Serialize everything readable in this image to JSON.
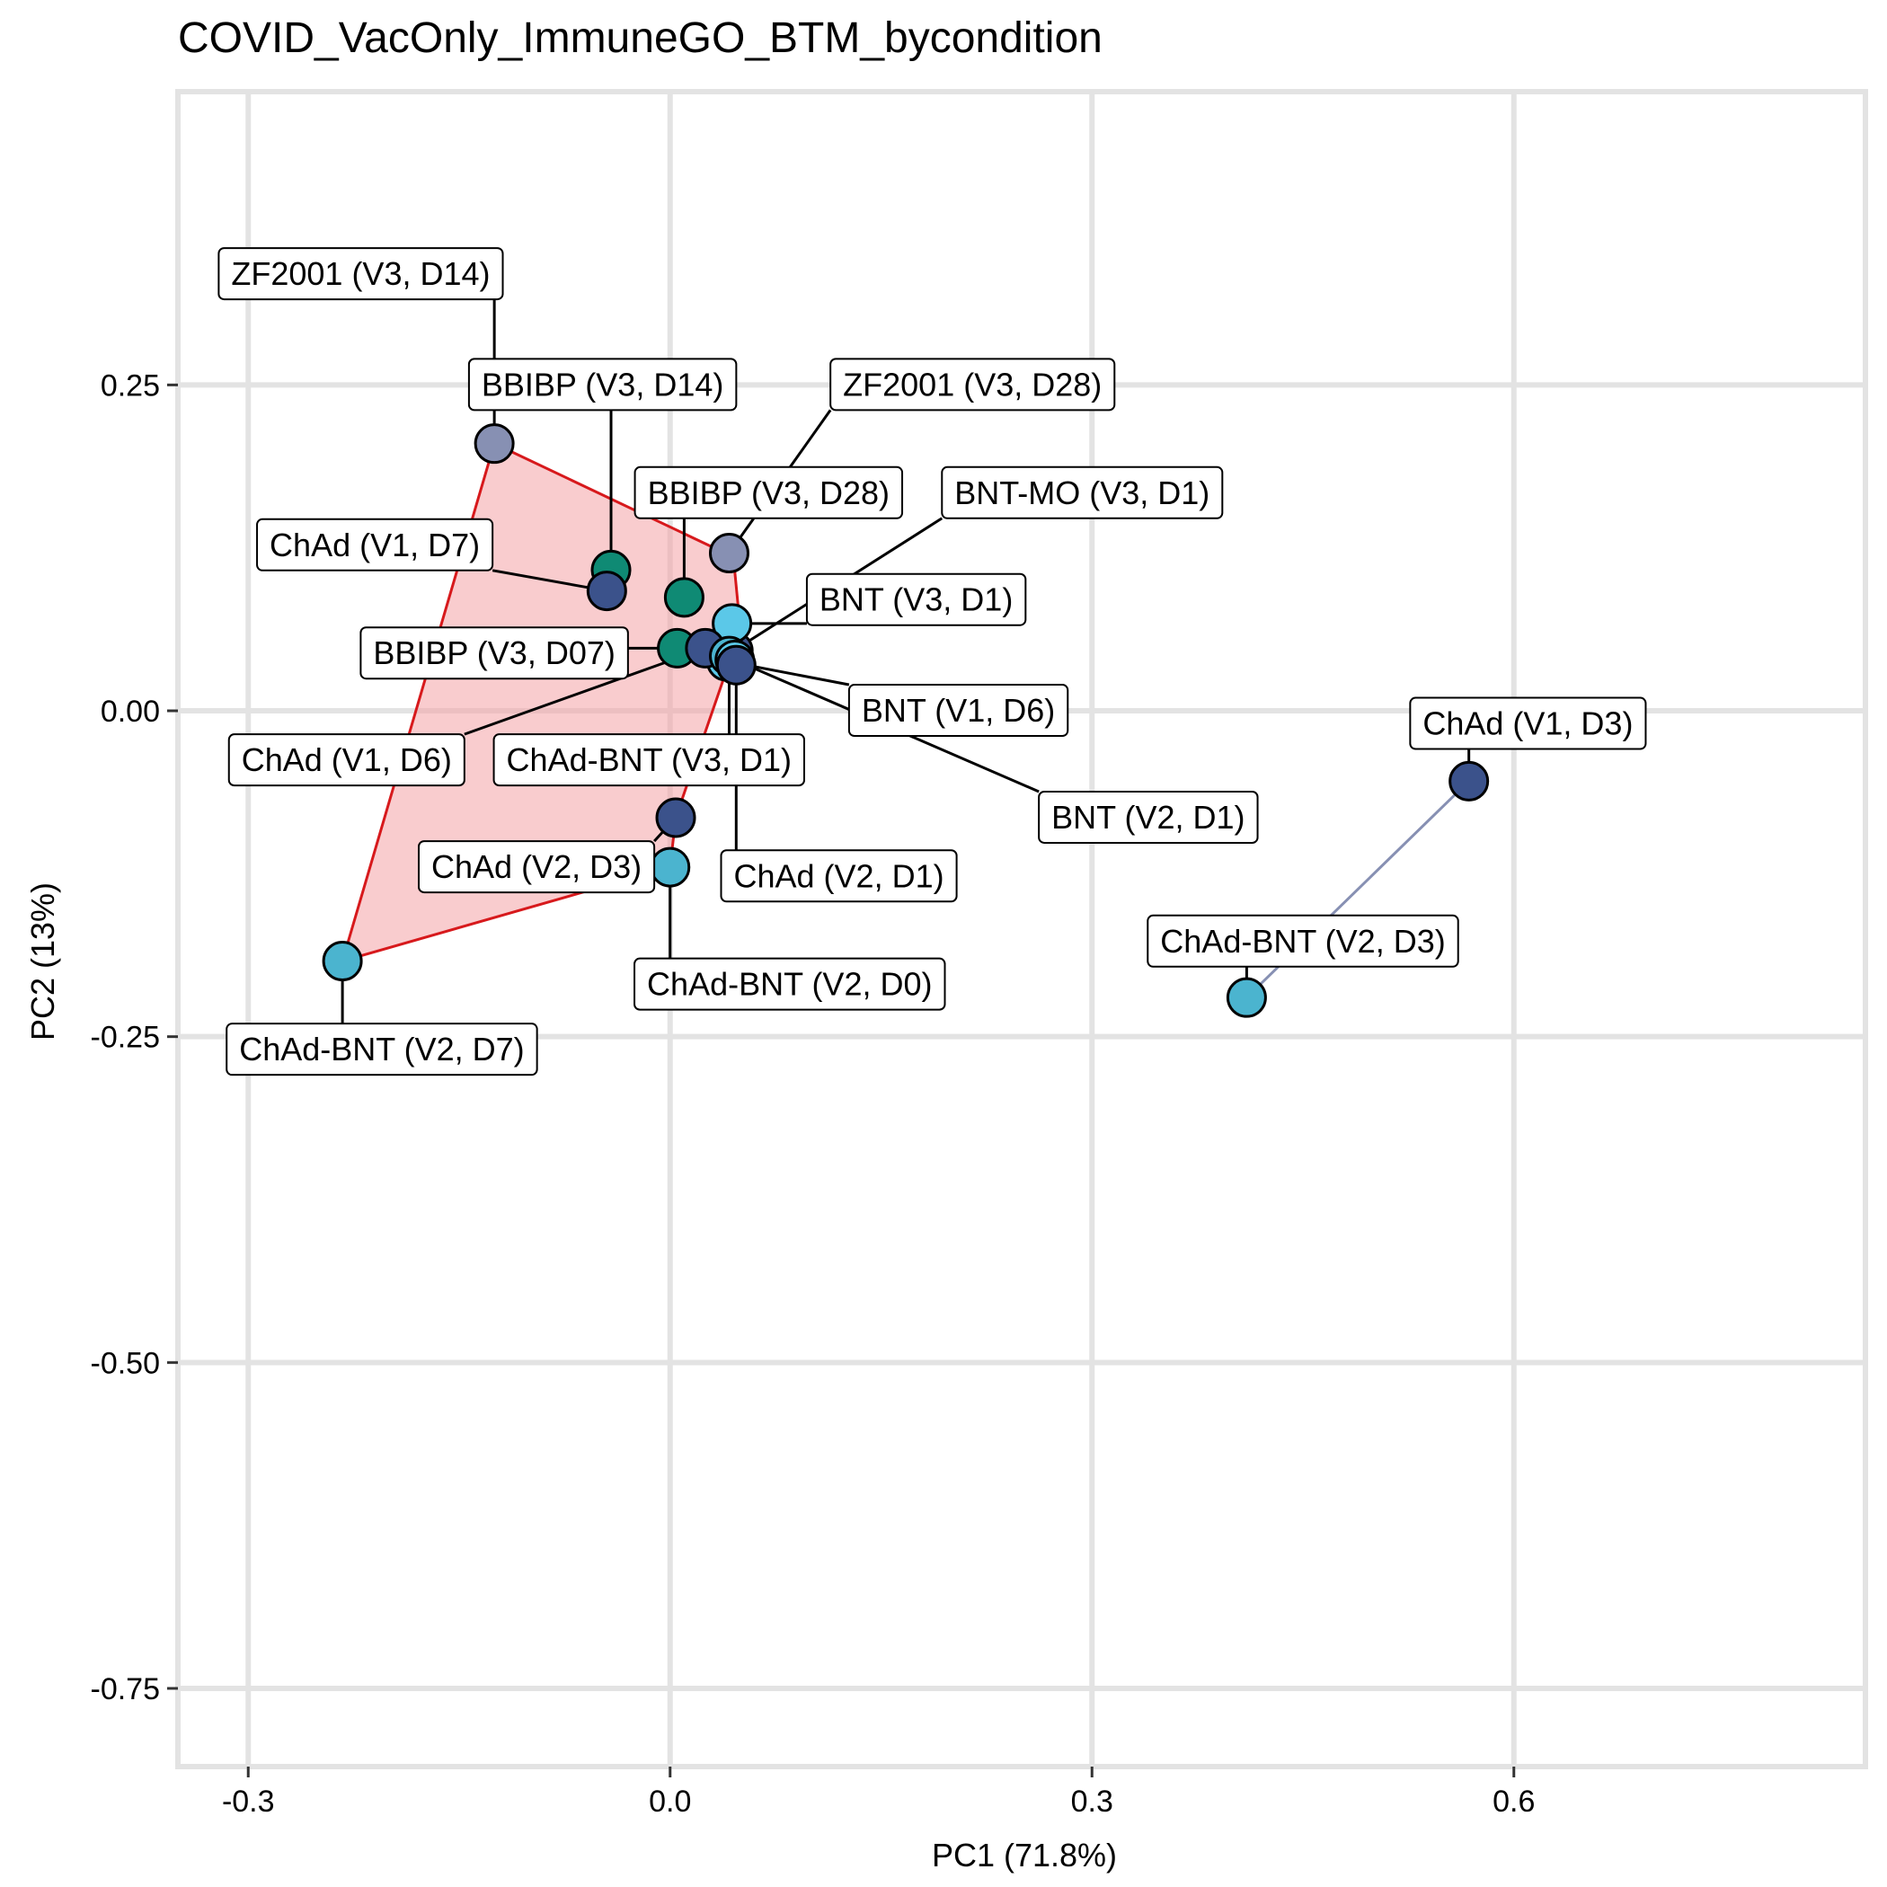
{
  "chart_data": {
    "type": "scatter",
    "title": "COVID_VacOnly_ImmuneGO_BTM_bycondition",
    "xlabel": "PC1 (71.8%)",
    "ylabel": "PC2 (13%)",
    "xlim": [
      -0.35,
      0.85
    ],
    "ylim": [
      -0.81,
      0.475
    ],
    "xticks": [
      -0.3,
      0.0,
      0.3,
      0.6
    ],
    "xtick_labels": [
      "-0.3",
      "0.0",
      "0.3",
      "0.6"
    ],
    "yticks": [
      -0.75,
      -0.5,
      -0.25,
      0.0,
      0.25
    ],
    "ytick_labels": [
      "-0.75",
      "-0.50",
      "-0.25",
      "0.00",
      "0.25"
    ],
    "grid": true,
    "colors": {
      "ChAd": "#3b528b",
      "ChAd-BNT": "#4bb4cf",
      "BNT": "#5bc8e8",
      "BNT-MO": "#3b528b",
      "BBIBP": "#0f8a74",
      "ZF2001": "#8790b3",
      "hull_fill": "#f4a3a6",
      "hull_stroke": "#d7191c",
      "hull_right_stroke": "#8790b3"
    },
    "points": [
      {
        "label": "ZF2001 (V3, D14)",
        "group": "ZF2001",
        "x": -0.125,
        "y": 0.205,
        "lx": -0.22,
        "ly": 0.335
      },
      {
        "label": "BBIBP (V3, D14)",
        "group": "BBIBP",
        "x": -0.042,
        "y": 0.108,
        "lx": -0.048,
        "ly": 0.25
      },
      {
        "label": "ZF2001 (V3, D28)",
        "group": "ZF2001",
        "x": 0.042,
        "y": 0.121,
        "lx": 0.215,
        "ly": 0.25
      },
      {
        "label": "BBIBP (V3, D28)",
        "group": "BBIBP",
        "x": 0.01,
        "y": 0.087,
        "lx": 0.07,
        "ly": 0.167
      },
      {
        "label": "BNT-MO (V3, D1)",
        "group": "BNT-MO",
        "x": 0.045,
        "y": 0.046,
        "lx": 0.293,
        "ly": 0.167
      },
      {
        "label": "ChAd (V1, D7)",
        "group": "ChAd",
        "x": -0.045,
        "y": 0.092,
        "lx": -0.21,
        "ly": 0.127
      },
      {
        "label": "BNT (V3, D1)",
        "group": "BNT",
        "x": 0.044,
        "y": 0.067,
        "lx": 0.175,
        "ly": 0.085
      },
      {
        "label": "BBIBP (V3, D07)",
        "group": "BBIBP",
        "x": 0.005,
        "y": 0.048,
        "lx": -0.125,
        "ly": 0.044
      },
      {
        "label": "BNT (V1, D6)",
        "group": "BNT",
        "x": 0.04,
        "y": 0.038,
        "lx": 0.205,
        "ly": 0.0
      },
      {
        "label": "ChAd (V1, D6)",
        "group": "ChAd",
        "x": 0.025,
        "y": 0.048,
        "lx": -0.23,
        "ly": -0.038
      },
      {
        "label": "ChAd-BNT (V3, D1)",
        "group": "ChAd-BNT",
        "x": 0.042,
        "y": 0.042,
        "lx": -0.015,
        "ly": -0.038
      },
      {
        "label": "BNT (V2, D1)",
        "group": "BNT",
        "x": 0.046,
        "y": 0.039,
        "lx": 0.34,
        "ly": -0.082
      },
      {
        "label": "ChAd (V2, D3)",
        "group": "ChAd",
        "x": 0.004,
        "y": -0.082,
        "lx": -0.095,
        "ly": -0.12
      },
      {
        "label": "ChAd (V2, D1)",
        "group": "ChAd",
        "x": 0.047,
        "y": 0.035,
        "lx": 0.12,
        "ly": -0.127
      },
      {
        "label": "ChAd-BNT (V2, D0)",
        "group": "ChAd-BNT",
        "x": 0.0,
        "y": -0.12,
        "lx": 0.085,
        "ly": -0.21
      },
      {
        "label": "ChAd-BNT (V2, D7)",
        "group": "ChAd-BNT",
        "x": -0.233,
        "y": -0.192,
        "lx": -0.205,
        "ly": -0.26
      },
      {
        "label": "ChAd (V1, D3)",
        "group": "ChAd",
        "x": 0.568,
        "y": -0.054,
        "lx": 0.61,
        "ly": -0.01
      },
      {
        "label": "ChAd-BNT (V2, D3)",
        "group": "ChAd-BNT",
        "x": 0.41,
        "y": -0.22,
        "lx": 0.45,
        "ly": -0.177
      }
    ],
    "hull": [
      [
        -0.125,
        0.205
      ],
      [
        0.045,
        0.118
      ],
      [
        0.05,
        0.062
      ],
      [
        0.004,
        -0.082
      ],
      [
        0.0,
        -0.12
      ],
      [
        -0.233,
        -0.192
      ]
    ],
    "hull_right": [
      [
        0.568,
        -0.054
      ],
      [
        0.41,
        -0.22
      ]
    ]
  }
}
